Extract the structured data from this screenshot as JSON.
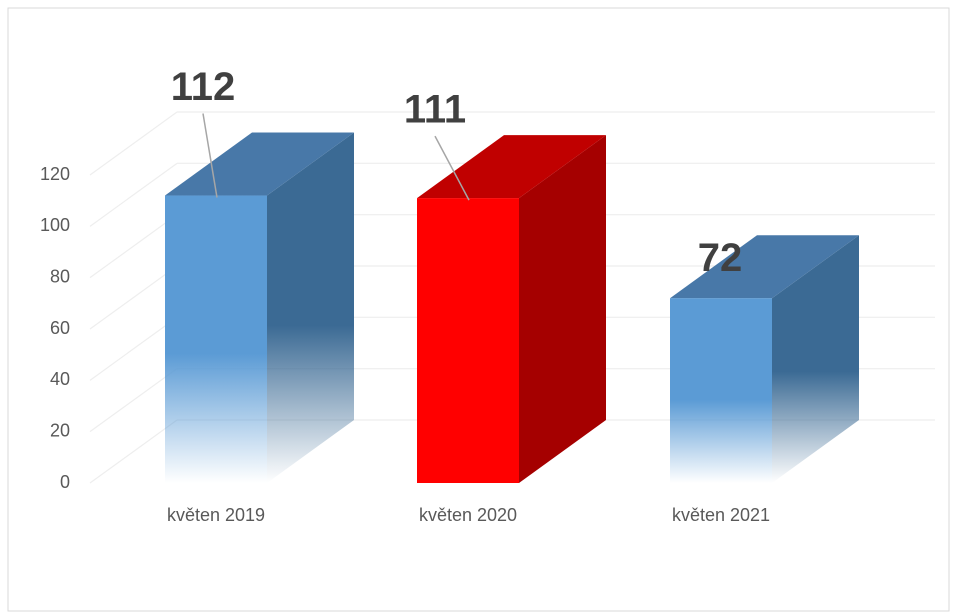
{
  "chart_data": {
    "type": "bar3d",
    "categories": [
      "květen 2019",
      "květen 2020",
      "květen 2021"
    ],
    "values": [
      112,
      111,
      72
    ],
    "colors": [
      "#5b9bd5",
      "#ff0000",
      "#5b9bd5"
    ],
    "ylim": [
      0,
      120
    ],
    "yticks": [
      0,
      20,
      40,
      60,
      80,
      100,
      120
    ],
    "grid": true
  }
}
